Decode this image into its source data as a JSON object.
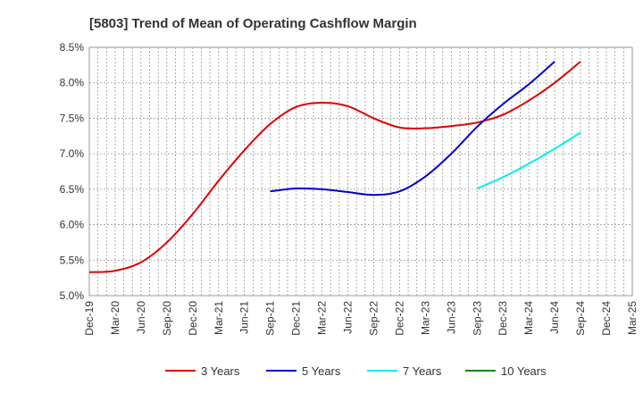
{
  "chart_data": {
    "type": "line",
    "title": "[5803]  Trend of Mean of Operating Cashflow Margin",
    "xlabel": "",
    "ylabel": "",
    "ylim": [
      5.0,
      8.5
    ],
    "yticks": [
      "5.0%",
      "5.5%",
      "6.0%",
      "6.5%",
      "7.0%",
      "7.5%",
      "8.0%",
      "8.5%"
    ],
    "ytick_values": [
      5.0,
      5.5,
      6.0,
      6.5,
      7.0,
      7.5,
      8.0,
      8.5
    ],
    "categories": [
      "Dec-19",
      "Mar-20",
      "Jun-20",
      "Sep-20",
      "Dec-20",
      "Mar-21",
      "Jun-21",
      "Sep-21",
      "Dec-21",
      "Mar-22",
      "Jun-22",
      "Sep-22",
      "Dec-22",
      "Mar-23",
      "Jun-23",
      "Sep-23",
      "Dec-23",
      "Mar-24",
      "Jun-24",
      "Sep-24",
      "Dec-24",
      "Mar-25"
    ],
    "grid": true,
    "legend_position": "bottom",
    "series": [
      {
        "name": "3 Years",
        "color": "#dd0000",
        "values": [
          5.33,
          5.35,
          5.47,
          5.75,
          6.15,
          6.62,
          7.05,
          7.42,
          7.66,
          7.72,
          7.67,
          7.5,
          7.37,
          7.36,
          7.39,
          7.44,
          7.55,
          7.75,
          8.0,
          8.3,
          null,
          null
        ]
      },
      {
        "name": "5 Years",
        "color": "#0000cc",
        "values": [
          null,
          null,
          null,
          null,
          null,
          null,
          null,
          6.47,
          6.51,
          6.5,
          6.46,
          6.42,
          6.47,
          6.68,
          7.0,
          7.38,
          7.7,
          7.98,
          8.3,
          null,
          null,
          null
        ],
        "values_note": ""
      },
      {
        "name": "7 Years",
        "color": "#00eeee",
        "values": [
          null,
          null,
          null,
          null,
          null,
          null,
          null,
          null,
          null,
          null,
          null,
          null,
          null,
          null,
          null,
          6.51,
          6.67,
          6.86,
          7.07,
          7.3,
          null,
          null
        ]
      },
      {
        "name": "10 Years",
        "color": "#008800",
        "values": [
          null,
          null,
          null,
          null,
          null,
          null,
          null,
          null,
          null,
          null,
          null,
          null,
          null,
          null,
          null,
          null,
          null,
          null,
          null,
          null,
          null,
          null
        ]
      }
    ]
  }
}
